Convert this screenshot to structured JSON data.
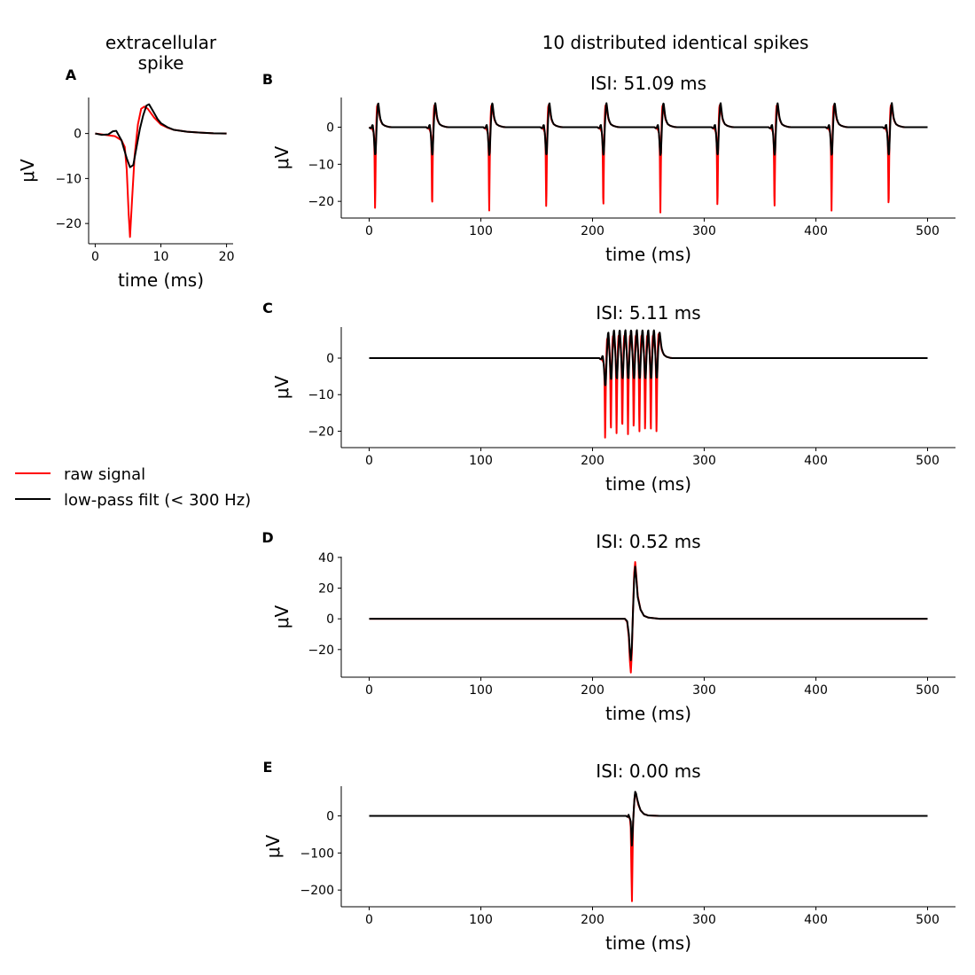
{
  "figure": {
    "suptitle": "10 distributed identical spikes",
    "legend": {
      "entries": [
        {
          "label": "raw signal",
          "color": "#ff0000"
        },
        {
          "label": "low-pass filt (< 300 Hz)",
          "color": "#000000"
        }
      ],
      "placement": "left-middle"
    }
  },
  "chart_data": [
    {
      "id": "A",
      "letter": "A",
      "type": "line",
      "title": "extracellular\nspike",
      "xlabel": "time (ms)",
      "ylabel": "μV",
      "xlim": [
        -1,
        21
      ],
      "ylim": [
        -24.5,
        8
      ],
      "xticks": [
        0,
        10,
        20
      ],
      "xticklabels": [
        "0",
        "10",
        "20"
      ],
      "yticks": [
        0,
        -10,
        -20
      ],
      "yticklabels": [
        "0",
        "−10",
        "−20"
      ],
      "series": [
        {
          "name": "raw signal",
          "color": "#ff0000",
          "x": [
            0,
            1,
            2,
            3,
            4,
            4.5,
            4.8,
            5.1,
            5.3,
            5.6,
            6,
            6.5,
            7,
            7.5,
            8,
            9,
            10,
            11,
            12,
            14,
            16,
            18,
            20
          ],
          "y": [
            0,
            -0.2,
            -0.4,
            -0.6,
            -1.5,
            -3,
            -8,
            -18,
            -23,
            -15,
            -5,
            2,
            5.5,
            6,
            5.5,
            3.5,
            2,
            1.3,
            0.8,
            0.4,
            0.2,
            0.05,
            0
          ]
        },
        {
          "name": "low-pass filt (< 300 Hz)",
          "color": "#000000",
          "x": [
            0,
            1,
            2,
            2.7,
            3.2,
            4,
            4.8,
            5.3,
            5.8,
            6.3,
            6.8,
            7.3,
            7.8,
            8.2,
            8.8,
            9.5,
            10,
            11,
            12,
            14,
            16,
            18,
            20
          ],
          "y": [
            0,
            -0.3,
            -0.2,
            0.5,
            0.6,
            -1.5,
            -5.5,
            -7.5,
            -7,
            -3,
            1,
            4,
            6.2,
            6.5,
            5,
            3.2,
            2.3,
            1.4,
            0.8,
            0.4,
            0.2,
            0.05,
            0
          ]
        }
      ]
    },
    {
      "id": "B",
      "letter": "B",
      "type": "line",
      "title": "ISI: 51.09 ms",
      "xlabel": "time (ms)",
      "ylabel": "μV",
      "xlim": [
        -25,
        525
      ],
      "ylim": [
        -24.5,
        8
      ],
      "xticks": [
        0,
        100,
        200,
        300,
        400,
        500
      ],
      "xticklabels": [
        "0",
        "100",
        "200",
        "300",
        "400",
        "500"
      ],
      "yticks": [
        0,
        -10,
        -20
      ],
      "yticklabels": [
        "0",
        "−10",
        "−20"
      ],
      "spike_template": "A",
      "spike_times": [
        0,
        51.09,
        102.18,
        153.27,
        204.36,
        255.45,
        306.54,
        357.63,
        408.72,
        459.81
      ],
      "duration": [
        0,
        500
      ],
      "series": [
        {
          "name": "raw signal",
          "color": "#ff0000"
        },
        {
          "name": "low-pass filt (< 300 Hz)",
          "color": "#000000"
        }
      ]
    },
    {
      "id": "C",
      "letter": "C",
      "type": "line",
      "title": "ISI: 5.11 ms",
      "xlabel": "time (ms)",
      "ylabel": "μV",
      "xlim": [
        -25,
        525
      ],
      "ylim": [
        -24.5,
        8.5
      ],
      "xticks": [
        0,
        100,
        200,
        300,
        400,
        500
      ],
      "xticklabels": [
        "0",
        "100",
        "200",
        "300",
        "400",
        "500"
      ],
      "yticks": [
        0,
        -10,
        -20
      ],
      "yticklabels": [
        "0",
        "−10",
        "−20"
      ],
      "spike_template": "A",
      "spike_times": [
        206,
        211.11,
        216.22,
        221.33,
        226.44,
        231.55,
        236.66,
        241.77,
        246.88,
        251.99
      ],
      "duration": [
        0,
        500
      ],
      "series": [
        {
          "name": "raw signal",
          "color": "#ff0000"
        },
        {
          "name": "low-pass filt (< 300 Hz)",
          "color": "#000000"
        }
      ]
    },
    {
      "id": "D",
      "letter": "D",
      "type": "line",
      "title": "ISI: 0.52 ms",
      "xlabel": "time (ms)",
      "ylabel": "μV",
      "xlim": [
        -25,
        525
      ],
      "ylim": [
        -38,
        40.5
      ],
      "xticks": [
        0,
        100,
        200,
        300,
        400,
        500
      ],
      "xticklabels": [
        "0",
        "100",
        "200",
        "300",
        "400",
        "500"
      ],
      "yticks": [
        40,
        20,
        0,
        -20
      ],
      "yticklabels": [
        "40",
        "20",
        "0",
        "−20"
      ],
      "series": [
        {
          "name": "raw signal",
          "color": "#ff0000",
          "x": [
            0,
            229,
            231,
            232.5,
            233.5,
            234.3,
            235.2,
            236.2,
            237.3,
            238.2,
            239,
            240.5,
            243,
            246,
            250,
            260,
            500
          ],
          "y": [
            0,
            0,
            -2,
            -12,
            -28,
            -35,
            -22,
            5,
            30,
            37,
            30,
            15,
            6,
            2,
            0.8,
            0,
            0
          ]
        },
        {
          "name": "low-pass filt (< 300 Hz)",
          "color": "#000000",
          "x": [
            0,
            229,
            231,
            232.5,
            233.5,
            234.3,
            235.2,
            236.2,
            237.3,
            238.2,
            239,
            240.5,
            243,
            246,
            250,
            260,
            500
          ],
          "y": [
            0,
            0,
            -1.5,
            -10,
            -22,
            -27,
            -18,
            4,
            26,
            34,
            28,
            14,
            6,
            2,
            0.8,
            0,
            0
          ]
        }
      ]
    },
    {
      "id": "E",
      "letter": "E",
      "type": "line",
      "title": "ISI: 0.00 ms",
      "xlabel": "time (ms)",
      "ylabel": "μV",
      "xlim": [
        -25,
        525
      ],
      "ylim": [
        -245,
        80
      ],
      "xticks": [
        0,
        100,
        200,
        300,
        400,
        500
      ],
      "xticklabels": [
        "0",
        "100",
        "200",
        "300",
        "400",
        "500"
      ],
      "yticks": [
        0,
        -100,
        -200
      ],
      "yticklabels": [
        "0",
        "−100",
        "−200"
      ],
      "series": [
        {
          "name": "raw signal",
          "color": "#ff0000",
          "x": [
            0,
            230,
            232,
            233.5,
            234.2,
            234.8,
            235.3,
            235.8,
            236.3,
            237,
            237.8,
            238.5,
            239.5,
            241,
            243,
            246,
            250,
            260,
            500
          ],
          "y": [
            0,
            0,
            -2,
            -8,
            -30,
            -150,
            -230,
            -120,
            -20,
            20,
            55,
            63,
            50,
            30,
            15,
            5,
            1,
            0,
            0
          ]
        },
        {
          "name": "low-pass filt (< 300 Hz)",
          "color": "#000000",
          "x": [
            0,
            230,
            231.5,
            232.3,
            233.2,
            234.2,
            235.2,
            236,
            236.8,
            237.5,
            238.2,
            239,
            240,
            241.5,
            243,
            246,
            250,
            260,
            500
          ],
          "y": [
            0,
            0,
            -3,
            3,
            -5,
            -15,
            -80,
            -40,
            10,
            45,
            65,
            60,
            45,
            28,
            15,
            5,
            1,
            0,
            0
          ]
        }
      ]
    }
  ]
}
